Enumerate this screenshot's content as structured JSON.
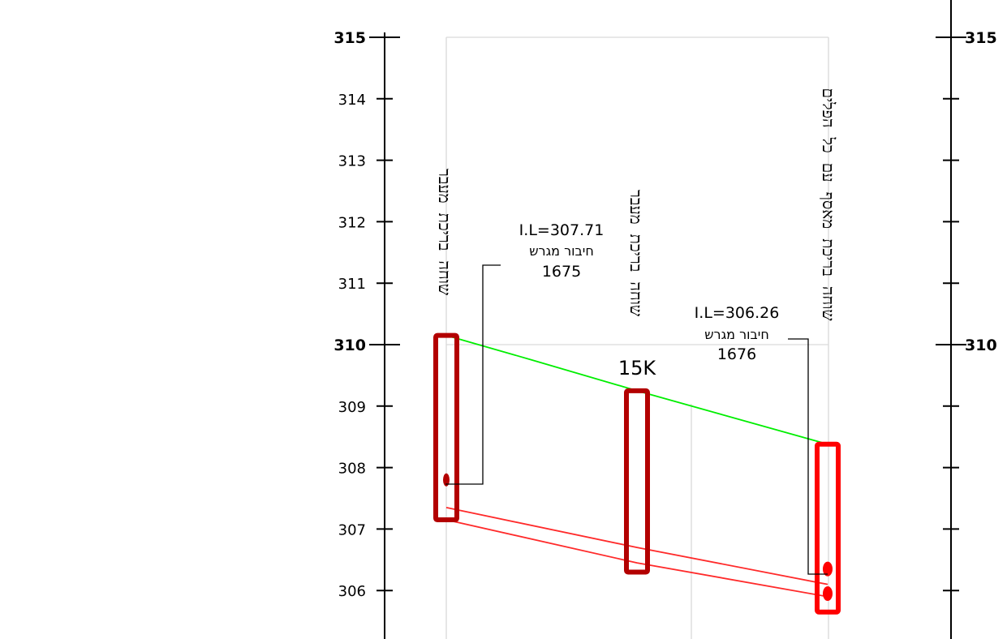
{
  "profile": {
    "elevation_axis": {
      "min": 306,
      "max": 315,
      "ticks": [
        315,
        314,
        313,
        312,
        311,
        310,
        309,
        308,
        307,
        306
      ],
      "labels": [
        "315",
        "314",
        "313",
        "312",
        "311",
        "310",
        "309",
        "308",
        "307",
        "306"
      ],
      "major_ticks": [
        315,
        310
      ],
      "right_labels": [
        "315",
        "310"
      ]
    },
    "manholes": [
      {
        "station": 0,
        "top": 310.15,
        "bottom": 307.15,
        "color": "#b30000",
        "vertical_label": "שוחה בריכת מעבר",
        "connection_elevation": 307.8
      },
      {
        "station": 1,
        "name": "15K",
        "top": 309.25,
        "bottom": 306.3,
        "color": "#b30000",
        "vertical_label": "שוחה בריכת מעבר"
      },
      {
        "station": 2,
        "top": 308.38,
        "bottom": 305.65,
        "color": "#ff0000",
        "vertical_label": "שוחה בריכת מאסף עם כל הפלים"
      }
    ],
    "ground_line": {
      "color": "#00ee00",
      "points": [
        [
          0,
          310.15
        ],
        [
          0.45,
          309.75
        ],
        [
          1,
          309.25
        ],
        [
          2,
          308.38
        ]
      ]
    },
    "pipes": {
      "color": "#ff2a2a",
      "lines": [
        [
          [
            0,
            307.35
          ],
          [
            1,
            306.7
          ],
          [
            2,
            306.1
          ]
        ],
        [
          [
            0,
            307.15
          ],
          [
            1,
            306.45
          ],
          [
            2,
            305.9
          ]
        ]
      ]
    },
    "annotations": [
      {
        "il_text": "I.L=307.71",
        "desc": "חיבור מגרש",
        "number": "1675"
      },
      {
        "il_text": "I.L=306.26",
        "desc": "חיבור מגרש",
        "number": "1676"
      }
    ],
    "colors": {
      "grid": "#d9d9d9",
      "axis": "#000000"
    }
  }
}
